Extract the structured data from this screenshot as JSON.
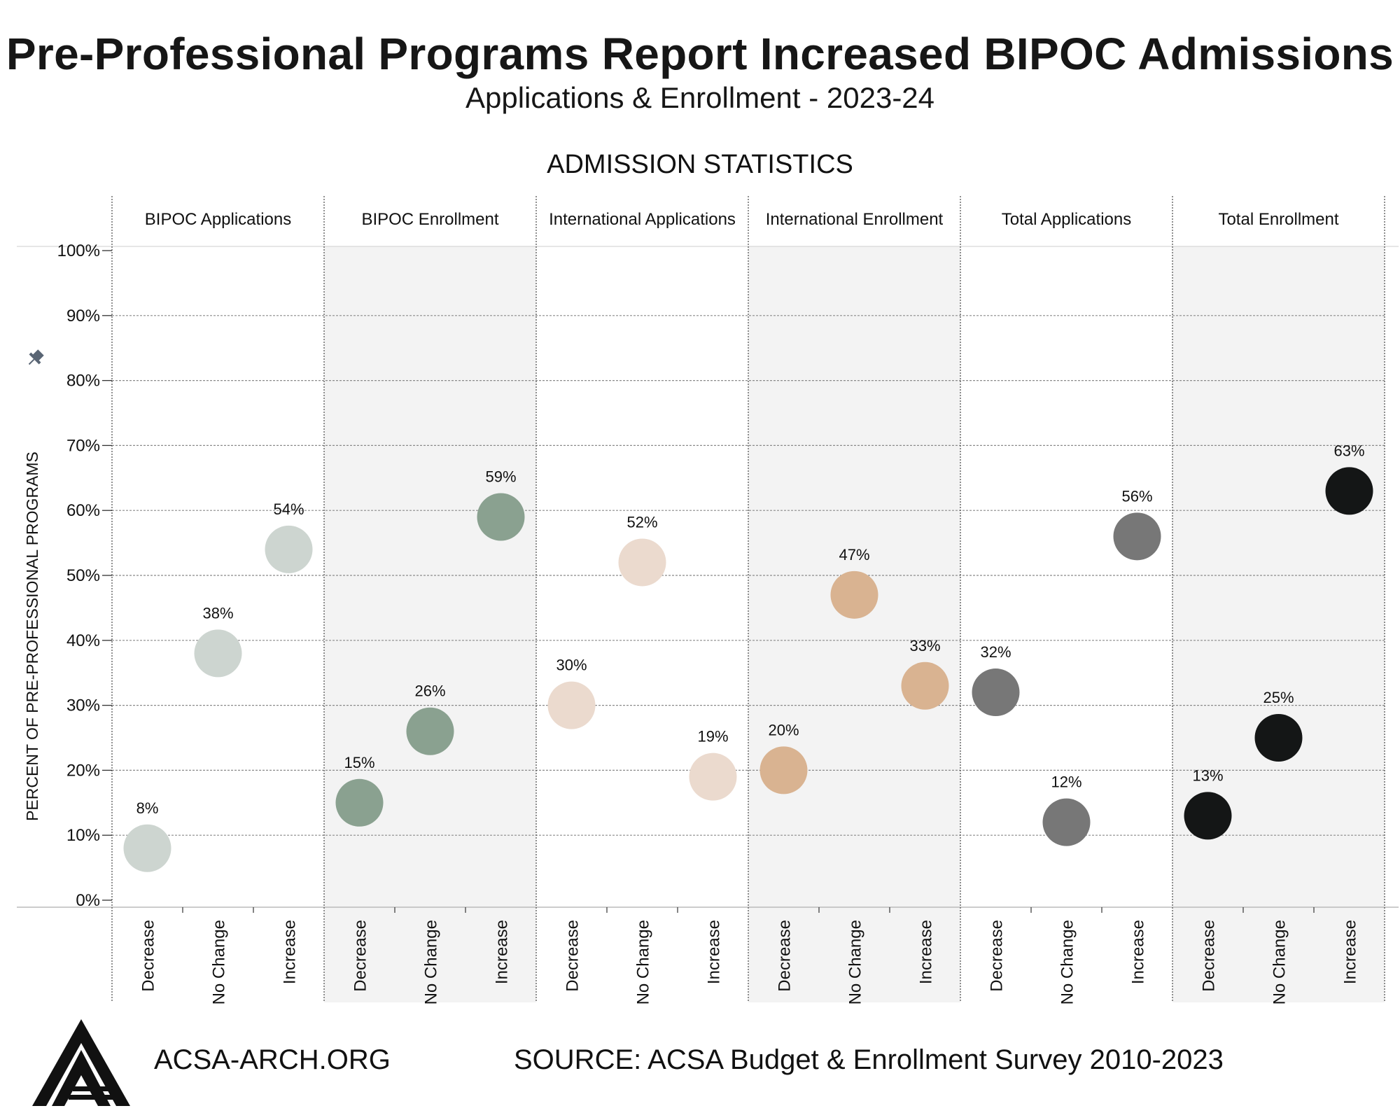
{
  "header": {
    "title": "Pre-Professional Programs Report Increased BIPOC Admissions",
    "subtitle": "Applications & Enrollment - 2023-24"
  },
  "section_title": "ADMISSION STATISTICS",
  "footer": {
    "website": "ACSA-ARCH.ORG",
    "source": "SOURCE: ACSA Budget & Enrollment Survey 2010-2023"
  },
  "chart_data": {
    "type": "scatter",
    "ylabel": "PERCENT OF PRE-PROFESSIONAL PROGRAMS",
    "ylim": [
      0,
      100
    ],
    "y_ticks": [
      "0%",
      "10%",
      "20%",
      "30%",
      "40%",
      "50%",
      "60%",
      "70%",
      "80%",
      "90%",
      "100%"
    ],
    "categories": [
      "Decrease",
      "No Change",
      "Increase"
    ],
    "grid": true,
    "panels": [
      {
        "name": "BIPOC Applications",
        "color": "#cdd5d0",
        "values": [
          8,
          38,
          54
        ],
        "labels": [
          "8%",
          "38%",
          "54%"
        ]
      },
      {
        "name": "BIPOC Enrollment",
        "color": "#8aa190",
        "values": [
          15,
          26,
          59
        ],
        "labels": [
          "15%",
          "26%",
          "59%"
        ]
      },
      {
        "name": "International Applications",
        "color": "#ebdace",
        "values": [
          30,
          52,
          19
        ],
        "labels": [
          "30%",
          "52%",
          "19%"
        ]
      },
      {
        "name": "International Enrollment",
        "color": "#d9b391",
        "values": [
          20,
          47,
          33
        ],
        "labels": [
          "20%",
          "47%",
          "33%"
        ]
      },
      {
        "name": "Total Applications",
        "color": "#777777",
        "values": [
          32,
          12,
          56
        ],
        "labels": [
          "32%",
          "12%",
          "56%"
        ]
      },
      {
        "name": "Total Enrollment",
        "color": "#141616",
        "values": [
          13,
          25,
          63
        ],
        "labels": [
          "13%",
          "25%",
          "63%"
        ]
      }
    ]
  },
  "icons": {
    "pin": "pin-icon",
    "logo": "acsa-logo-icon"
  }
}
